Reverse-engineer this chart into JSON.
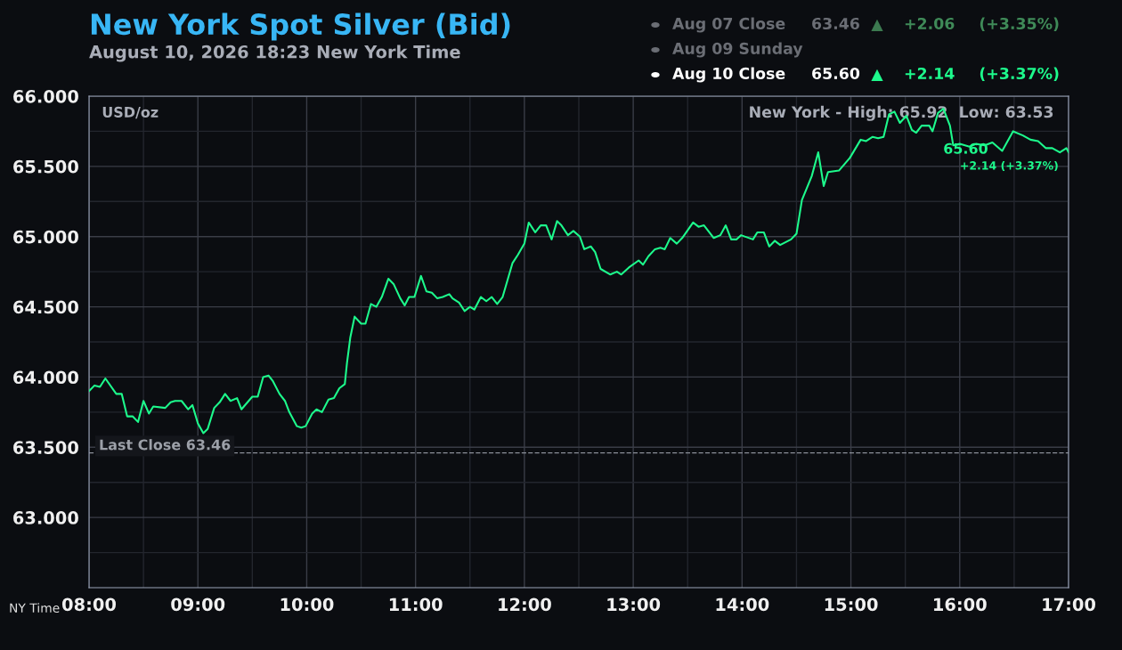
{
  "chart_data": {
    "type": "line",
    "title": "New York Spot Silver (Bid)",
    "subtitle": "August 10, 2026 18:23 New York Time",
    "xlabel": "NY Time",
    "series": [
      {
        "color": "#1dfa8c",
        "x": [
          8.0,
          8.05,
          8.1,
          8.15,
          8.25,
          8.3,
          8.35,
          8.4,
          8.45,
          8.5,
          8.55,
          8.59,
          8.7,
          8.75,
          8.79,
          8.85,
          8.91,
          8.95,
          9.0,
          9.05,
          9.09,
          9.15,
          9.2,
          9.25,
          9.3,
          9.36,
          9.4,
          9.5,
          9.55,
          9.6,
          9.65,
          9.69,
          9.75,
          9.8,
          9.84,
          9.91,
          9.95,
          9.99,
          10.05,
          10.09,
          10.14,
          10.2,
          10.25,
          10.3,
          10.35,
          10.37,
          10.4,
          10.44,
          10.5,
          10.54,
          10.59,
          10.64,
          10.69,
          10.75,
          10.8,
          10.86,
          10.9,
          10.94,
          10.99,
          11.05,
          11.1,
          11.15,
          11.2,
          11.25,
          11.31,
          11.34,
          11.4,
          11.45,
          11.5,
          11.54,
          11.6,
          11.65,
          11.7,
          11.75,
          11.8,
          11.89,
          11.94,
          12.0,
          12.04,
          12.1,
          12.15,
          12.2,
          12.25,
          12.3,
          12.34,
          12.4,
          12.45,
          12.51,
          12.55,
          12.61,
          12.65,
          12.7,
          12.79,
          12.85,
          12.89,
          12.96,
          13.05,
          13.09,
          13.14,
          13.2,
          13.25,
          13.29,
          13.34,
          13.4,
          13.45,
          13.55,
          13.6,
          13.65,
          13.74,
          13.8,
          13.85,
          13.9,
          13.95,
          13.99,
          14.1,
          14.14,
          14.2,
          14.25,
          14.3,
          14.35,
          14.45,
          14.5,
          14.55,
          14.64,
          14.7,
          14.75,
          14.79,
          14.89,
          14.99,
          15.09,
          15.14,
          15.2,
          15.25,
          15.3,
          15.35,
          15.4,
          15.45,
          15.51,
          15.56,
          15.6,
          15.65,
          15.72,
          15.75,
          15.8,
          15.85,
          15.91,
          15.94,
          16.0,
          16.09,
          16.15,
          16.23,
          16.3,
          16.39,
          16.49,
          16.58,
          16.65,
          16.72,
          16.79,
          16.85,
          16.92,
          16.98,
          17.0
        ],
        "values": [
          63.9,
          63.94,
          63.93,
          63.99,
          63.88,
          63.88,
          63.72,
          63.72,
          63.68,
          63.83,
          63.74,
          63.79,
          63.78,
          63.82,
          63.83,
          63.83,
          63.77,
          63.8,
          63.67,
          63.6,
          63.63,
          63.78,
          63.82,
          63.88,
          63.83,
          63.85,
          63.77,
          63.86,
          63.86,
          64.0,
          64.01,
          63.97,
          63.88,
          63.83,
          63.75,
          63.65,
          63.64,
          63.65,
          63.74,
          63.77,
          63.75,
          63.84,
          63.85,
          63.92,
          63.95,
          64.1,
          64.28,
          64.43,
          64.38,
          64.38,
          64.52,
          64.5,
          64.57,
          64.7,
          64.66,
          64.56,
          64.51,
          64.57,
          64.57,
          64.72,
          64.61,
          64.6,
          64.56,
          64.57,
          64.59,
          64.56,
          64.53,
          64.47,
          64.5,
          64.48,
          64.57,
          64.54,
          64.57,
          64.52,
          64.57,
          64.81,
          64.87,
          64.95,
          65.1,
          65.03,
          65.08,
          65.08,
          64.98,
          65.11,
          65.08,
          65.01,
          65.04,
          65.0,
          64.91,
          64.93,
          64.89,
          64.77,
          64.73,
          64.75,
          64.73,
          64.78,
          64.83,
          64.8,
          64.86,
          64.91,
          64.92,
          64.91,
          64.99,
          64.95,
          64.99,
          65.1,
          65.07,
          65.08,
          64.99,
          65.01,
          65.08,
          64.98,
          64.98,
          65.01,
          64.98,
          65.03,
          65.03,
          64.93,
          64.97,
          64.94,
          64.98,
          65.02,
          65.26,
          65.43,
          65.6,
          65.36,
          65.46,
          65.47,
          65.56,
          65.69,
          65.68,
          65.71,
          65.7,
          65.71,
          65.87,
          65.89,
          65.81,
          65.86,
          65.76,
          65.74,
          65.79,
          65.79,
          65.75,
          65.88,
          65.91,
          65.79,
          65.65,
          65.66,
          65.64,
          65.66,
          65.65,
          65.67,
          65.61,
          65.75,
          65.72,
          65.69,
          65.68,
          65.63,
          65.63,
          65.6,
          65.63,
          65.6
        ]
      }
    ],
    "xlim": [
      8,
      17
    ],
    "ylim": [
      62.5,
      66.0
    ],
    "xticks": [
      {
        "value": 8,
        "label": "08:00"
      },
      {
        "value": 8.5,
        "label": null
      },
      {
        "value": 9,
        "label": "09:00"
      },
      {
        "value": 9.5,
        "label": null
      },
      {
        "value": 10,
        "label": "10:00"
      },
      {
        "value": 10.5,
        "label": null
      },
      {
        "value": 11,
        "label": "11:00"
      },
      {
        "value": 11.5,
        "label": null
      },
      {
        "value": 12,
        "label": "12:00"
      },
      {
        "value": 12.5,
        "label": null
      },
      {
        "value": 13,
        "label": "13:00"
      },
      {
        "value": 13.5,
        "label": null
      },
      {
        "value": 14,
        "label": "14:00"
      },
      {
        "value": 14.5,
        "label": null
      },
      {
        "value": 15,
        "label": "15:00"
      },
      {
        "value": 15.5,
        "label": null
      },
      {
        "value": 16,
        "label": "16:00"
      },
      {
        "value": 16.5,
        "label": null
      },
      {
        "value": 17,
        "label": "17:00"
      }
    ],
    "yticks": [
      {
        "value": 62.75,
        "label": null
      },
      {
        "value": 63,
        "label": "63.000"
      },
      {
        "value": 63.25,
        "label": null
      },
      {
        "value": 63.5,
        "label": "63.500"
      },
      {
        "value": 63.75,
        "label": null
      },
      {
        "value": 64,
        "label": "64.000"
      },
      {
        "value": 64.25,
        "label": null
      },
      {
        "value": 64.5,
        "label": "64.500"
      },
      {
        "value": 64.75,
        "label": null
      },
      {
        "value": 65,
        "label": "65.000"
      },
      {
        "value": 65.25,
        "label": null
      },
      {
        "value": 65.5,
        "label": "65.500"
      },
      {
        "value": 65.75,
        "label": null
      },
      {
        "value": 66,
        "label": "66.000"
      }
    ],
    "grid": true,
    "marker": "none",
    "line_style": "solid",
    "ref_lines": [
      {
        "axis": "y",
        "value": 63.46,
        "label": "Last Close 63.46",
        "color": "#8a8f99",
        "line_style": "dashed"
      }
    ],
    "annotations": [
      "USD/oz",
      "New York - High: 65.92  Low: 63.53",
      "65.60",
      "+2.14 (+3.37%)",
      "Aug 07 Close",
      "63.46",
      "▲",
      "+2.06",
      "(+3.35%)",
      "Aug 09 Sunday",
      "Aug 10 Close",
      "65.60",
      "▲",
      "+2.14",
      "(+3.37%)"
    ]
  }
}
